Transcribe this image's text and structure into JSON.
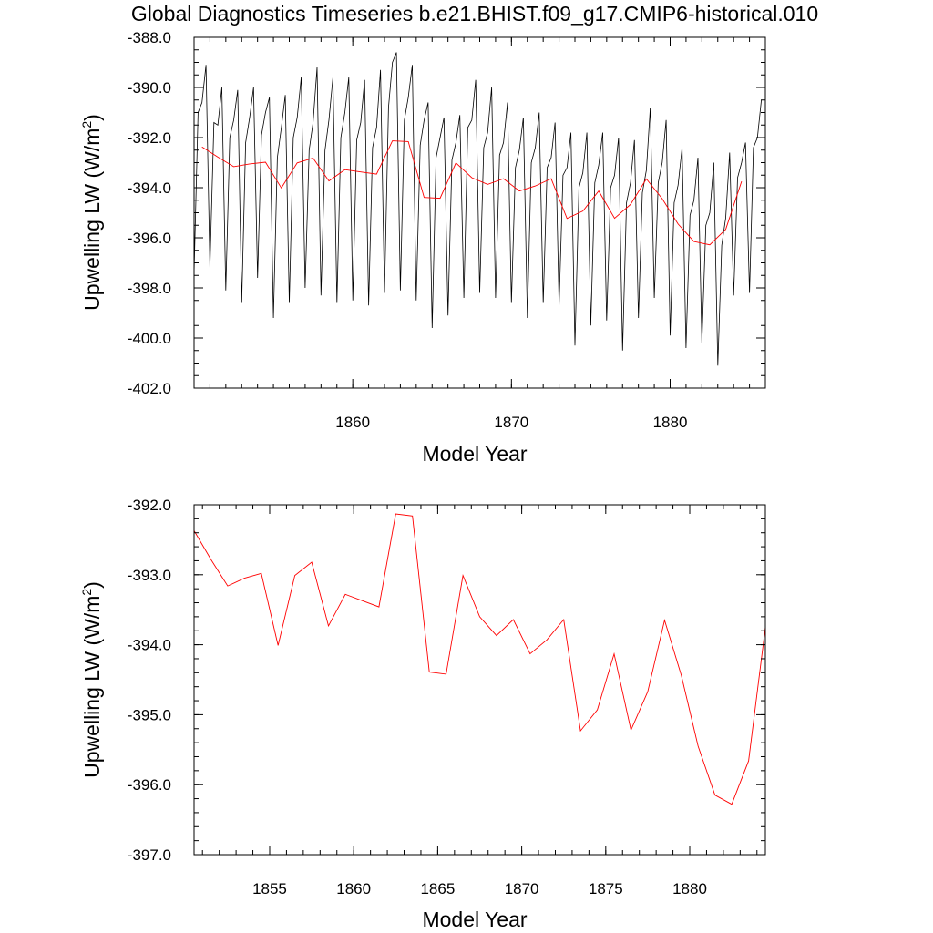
{
  "title": "Global Diagnostics Timeseries b.e21.BHIST.f09_g17.CMIP6-historical.010",
  "colors": {
    "monthly": "#000000",
    "annual": "#ff0000",
    "axis": "#000000"
  },
  "chart_data": [
    {
      "type": "line",
      "xlabel": "Model Year",
      "ylabel": "Upwelling LW (W/m²)",
      "xlim": [
        1850,
        1886
      ],
      "ylim": [
        -402.0,
        -388.0
      ],
      "yticks": [
        "-402.0",
        "-400.0",
        "-398.0",
        "-396.0",
        "-394.0",
        "-392.0",
        "-390.0",
        "-388.0"
      ],
      "xticks": [
        "1860",
        "1870",
        "1880"
      ],
      "series": [
        {
          "name": "",
          "color": "#000000",
          "x": [
            1850.0,
            1850.25,
            1850.5,
            1850.75,
            1851.0,
            1851.25,
            1851.5,
            1851.75,
            1852.0,
            1852.25,
            1852.5,
            1852.75,
            1853.0,
            1853.25,
            1853.5,
            1853.75,
            1854.0,
            1854.25,
            1854.5,
            1854.75,
            1855.0,
            1855.25,
            1855.5,
            1855.75,
            1856.0,
            1856.25,
            1856.5,
            1856.75,
            1857.0,
            1857.25,
            1857.5,
            1857.75,
            1858.0,
            1858.25,
            1858.5,
            1858.75,
            1859.0,
            1859.25,
            1859.5,
            1859.75,
            1860.0,
            1860.25,
            1860.5,
            1860.75,
            1861.0,
            1861.25,
            1861.5,
            1861.75,
            1862.0,
            1862.25,
            1862.5,
            1862.75,
            1863.0,
            1863.25,
            1863.5,
            1863.75,
            1864.0,
            1864.25,
            1864.5,
            1864.75,
            1865.0,
            1865.25,
            1865.5,
            1865.75,
            1866.0,
            1866.25,
            1866.5,
            1866.75,
            1867.0,
            1867.25,
            1867.5,
            1867.75,
            1868.0,
            1868.25,
            1868.5,
            1868.75,
            1869.0,
            1869.25,
            1869.5,
            1869.75,
            1870.0,
            1870.25,
            1870.5,
            1870.75,
            1871.0,
            1871.25,
            1871.5,
            1871.75,
            1872.0,
            1872.25,
            1872.5,
            1872.75,
            1873.0,
            1873.25,
            1873.5,
            1873.75,
            1874.0,
            1874.25,
            1874.5,
            1874.75,
            1875.0,
            1875.25,
            1875.5,
            1875.75,
            1876.0,
            1876.25,
            1876.5,
            1876.75,
            1877.0,
            1877.25,
            1877.5,
            1877.75,
            1878.0,
            1878.25,
            1878.5,
            1878.75,
            1879.0,
            1879.25,
            1879.5,
            1879.75,
            1880.0,
            1880.25,
            1880.5,
            1880.75,
            1881.0,
            1881.25,
            1881.5,
            1881.75,
            1882.0,
            1882.25,
            1882.5,
            1882.75,
            1883.0,
            1883.25,
            1883.5,
            1883.75,
            1884.0,
            1884.25,
            1884.5,
            1884.75,
            1885.0,
            1885.25,
            1885.5,
            1885.75
          ],
          "y": [
            -397.4,
            -391.0,
            -390.6,
            -389.1,
            -397.2,
            -391.4,
            -391.5,
            -390.0,
            -398.1,
            -392.0,
            -391.3,
            -390.1,
            -398.6,
            -392.2,
            -391.2,
            -390.0,
            -397.6,
            -391.9,
            -391.0,
            -390.4,
            -399.2,
            -392.8,
            -391.6,
            -390.3,
            -398.6,
            -392.0,
            -391.2,
            -389.6,
            -398.0,
            -392.5,
            -391.4,
            -389.2,
            -398.3,
            -392.5,
            -391.3,
            -389.6,
            -398.6,
            -392.0,
            -391.0,
            -389.6,
            -398.5,
            -392.1,
            -391.4,
            -389.7,
            -398.7,
            -392.4,
            -391.6,
            -389.3,
            -398.2,
            -390.8,
            -389.0,
            -388.6,
            -398.1,
            -391.3,
            -390.4,
            -389.1,
            -398.5,
            -392.3,
            -391.3,
            -390.6,
            -399.6,
            -392.8,
            -392.0,
            -391.2,
            -399.1,
            -392.9,
            -392.2,
            -391.1,
            -398.4,
            -391.6,
            -391.3,
            -389.7,
            -398.2,
            -392.4,
            -391.8,
            -390.0,
            -398.4,
            -392.7,
            -392.2,
            -390.6,
            -398.6,
            -393.2,
            -392.5,
            -391.2,
            -399.2,
            -393.0,
            -392.4,
            -391.0,
            -398.6,
            -393.2,
            -392.8,
            -391.4,
            -398.7,
            -393.5,
            -393.2,
            -391.8,
            -400.3,
            -394.0,
            -393.4,
            -391.8,
            -399.5,
            -393.8,
            -393.1,
            -391.8,
            -399.3,
            -394.0,
            -393.5,
            -392.0,
            -400.5,
            -394.6,
            -393.8,
            -392.1,
            -399.2,
            -394.2,
            -393.3,
            -390.8,
            -398.4,
            -393.8,
            -393.0,
            -391.3,
            -399.9,
            -394.6,
            -393.9,
            -392.4,
            -400.4,
            -395.1,
            -394.5,
            -392.8,
            -400.2,
            -395.5,
            -395.0,
            -393.0,
            -401.1,
            -396.3,
            -395.2,
            -392.6,
            -398.3,
            -393.6,
            -393.0,
            -392.2,
            -398.2,
            -392.4,
            -392.0,
            -390.5
          ]
        },
        {
          "name": "",
          "color": "#ff0000",
          "x": [
            1850.5,
            1851.5,
            1852.5,
            1853.5,
            1854.5,
            1855.5,
            1856.5,
            1857.5,
            1858.5,
            1859.5,
            1860.5,
            1861.5,
            1862.5,
            1863.5,
            1864.5,
            1865.5,
            1866.5,
            1867.5,
            1868.5,
            1869.5,
            1870.5,
            1871.5,
            1872.5,
            1873.5,
            1874.5,
            1875.5,
            1876.5,
            1877.5,
            1878.5,
            1879.5,
            1880.5,
            1881.5,
            1882.5,
            1883.5,
            1884.5
          ],
          "y": [
            -392.37,
            -392.78,
            -393.16,
            -393.05,
            -392.98,
            -394.01,
            -393.01,
            -392.82,
            -393.73,
            -393.28,
            -393.37,
            -393.46,
            -392.13,
            -392.16,
            -394.39,
            -394.42,
            -393.01,
            -393.6,
            -393.87,
            -393.64,
            -394.13,
            -393.93,
            -393.64,
            -395.23,
            -394.93,
            -394.13,
            -395.22,
            -394.67,
            -393.65,
            -394.44,
            -395.45,
            -396.15,
            -396.28,
            -395.66,
            -393.75
          ]
        }
      ]
    },
    {
      "type": "line",
      "xlabel": "Model Year",
      "ylabel": "Upwelling LW (W/m²)",
      "xlim": [
        1850.5,
        1884.5
      ],
      "ylim": [
        -397.0,
        -392.0
      ],
      "yticks": [
        "-397.0",
        "-396.0",
        "-395.0",
        "-394.0",
        "-393.0",
        "-392.0"
      ],
      "xticks": [
        "1855",
        "1860",
        "1865",
        "1870",
        "1875",
        "1880"
      ],
      "series": [
        {
          "name": "",
          "color": "#ff0000",
          "x": [
            1850.5,
            1851.5,
            1852.5,
            1853.5,
            1854.5,
            1855.5,
            1856.5,
            1857.5,
            1858.5,
            1859.5,
            1860.5,
            1861.5,
            1862.5,
            1863.5,
            1864.5,
            1865.5,
            1866.5,
            1867.5,
            1868.5,
            1869.5,
            1870.5,
            1871.5,
            1872.5,
            1873.5,
            1874.5,
            1875.5,
            1876.5,
            1877.5,
            1878.5,
            1879.5,
            1880.5,
            1881.5,
            1882.5,
            1883.5,
            1884.5
          ],
          "y": [
            -392.37,
            -392.78,
            -393.16,
            -393.05,
            -392.98,
            -394.01,
            -393.01,
            -392.82,
            -393.73,
            -393.28,
            -393.37,
            -393.46,
            -392.13,
            -392.16,
            -394.39,
            -394.42,
            -393.01,
            -393.6,
            -393.87,
            -393.64,
            -394.13,
            -393.93,
            -393.64,
            -395.23,
            -394.93,
            -394.13,
            -395.22,
            -394.67,
            -393.65,
            -394.44,
            -395.45,
            -396.15,
            -396.28,
            -395.66,
            -393.75
          ]
        }
      ]
    }
  ]
}
